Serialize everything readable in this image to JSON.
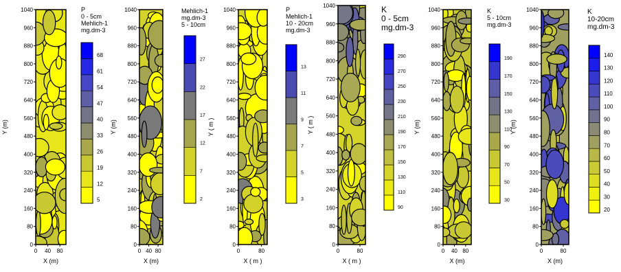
{
  "chart_data": [
    {
      "type": "heatmap",
      "title_lines": [
        "P",
        "0 - 5cm",
        "Mehlich-1",
        "mg.dm-3"
      ],
      "xlabel": "X (m)",
      "ylabel": "Y (m)",
      "xticks": [
        "0",
        "40",
        "80"
      ],
      "yticks": [
        "0",
        "80",
        "160",
        "240",
        "320",
        "400",
        "480",
        "560",
        "640",
        "720",
        "800",
        "880",
        "960",
        "1040"
      ],
      "xlim": [
        0,
        100
      ],
      "ylim": [
        0,
        1040
      ],
      "legend_levels": [
        "5",
        "12",
        "19",
        "26",
        "33",
        "40",
        "47",
        "54",
        "61",
        "68"
      ],
      "colors": [
        "#ffff00",
        "#e6e61a",
        "#c8c832",
        "#a9a94b",
        "#8c8c6e",
        "#747488",
        "#5e5ea6",
        "#4646c6",
        "#2727e6",
        "#0000ff"
      ],
      "dominant_level_index": 1
    },
    {
      "type": "heatmap",
      "title_lines": [
        "Mehlich-1",
        "mg.dm-3",
        "5 - 10cm"
      ],
      "xlabel": "X (m)",
      "ylabel": "Y (m)",
      "xticks": [
        "0",
        "40",
        "80"
      ],
      "yticks": [
        "0",
        "80",
        "160",
        "240",
        "320",
        "400",
        "480",
        "560",
        "640",
        "720",
        "800",
        "880",
        "960",
        "1040"
      ],
      "xlim": [
        0,
        100
      ],
      "ylim": [
        0,
        1040
      ],
      "legend_levels": [
        "2",
        "7",
        "12",
        "17",
        "22",
        "27"
      ],
      "colors": [
        "#ffff00",
        "#d2d22a",
        "#a5a550",
        "#7a7a7a",
        "#4a4ab0",
        "#0000ff"
      ],
      "dominant_level_index": 1
    },
    {
      "type": "heatmap",
      "title_lines": [
        "P",
        "Mehlich-1",
        "10 - 20cm",
        "mg.dm-3"
      ],
      "xlabel": "X ( m )",
      "ylabel": "Y ( m )",
      "xticks": [
        "0",
        "80"
      ],
      "yticks": [
        "0",
        "80",
        "160",
        "240",
        "320",
        "400",
        "480",
        "560",
        "640",
        "720",
        "800",
        "880",
        "960",
        "1040"
      ],
      "xlim": [
        0,
        100
      ],
      "ylim": [
        0,
        1040
      ],
      "legend_levels": [
        "3",
        "5",
        "7",
        "9",
        "11",
        "13"
      ],
      "colors": [
        "#ffff00",
        "#d2d22a",
        "#a5a550",
        "#7a7a7a",
        "#4a4ab0",
        "#0000ff"
      ],
      "dominant_level_index": 1
    },
    {
      "type": "heatmap",
      "title_lines": [
        "K",
        "0 - 5cm",
        "mg.dm-3"
      ],
      "xlabel": "X ( m )",
      "ylabel": "Y ( m )",
      "xticks": [
        "0",
        "80"
      ],
      "yticks": [
        "0",
        "80",
        "160",
        "240",
        "320",
        "400",
        "480",
        "560",
        "640",
        "720",
        "800",
        "880",
        "960",
        "1040"
      ],
      "xlim": [
        0,
        100
      ],
      "ylim": [
        0,
        1040
      ],
      "legend_levels": [
        "90",
        "110",
        "130",
        "150",
        "170",
        "190",
        "210",
        "230",
        "250",
        "270",
        "290"
      ],
      "colors": [
        "#ffff00",
        "#eaea15",
        "#d4d42a",
        "#bebe40",
        "#a8a855",
        "#8c8c70",
        "#767688",
        "#6060a0",
        "#4646c0",
        "#2a2ae0",
        "#0000ff"
      ],
      "dominant_level_index": 2
    },
    {
      "type": "heatmap",
      "title_lines": [
        "K",
        "5 - 10cm",
        "mg.dm-3"
      ],
      "xlabel": "X (m)",
      "ylabel": "Y (m)",
      "xticks": [
        "0",
        "40",
        "80"
      ],
      "yticks": [
        "0",
        "80",
        "160",
        "240",
        "320",
        "400",
        "480",
        "560",
        "640",
        "720",
        "800",
        "880",
        "960",
        "1040"
      ],
      "xlim": [
        0,
        100
      ],
      "ylim": [
        0,
        1040
      ],
      "legend_levels": [
        "30",
        "50",
        "70",
        "90",
        "110",
        "130",
        "150",
        "170",
        "190"
      ],
      "colors": [
        "#ffff00",
        "#e6e61a",
        "#c8c832",
        "#a9a94b",
        "#8c8c6e",
        "#747488",
        "#5e5ea6",
        "#3535d0",
        "#0000ff"
      ],
      "dominant_level_index": 2
    },
    {
      "type": "heatmap",
      "title_lines": [
        "K",
        "10-20cm",
        "mg.dm-3"
      ],
      "xlabel": "X (m)",
      "ylabel": "Y (m)",
      "xticks": [
        "0",
        "80"
      ],
      "yticks": [
        "0",
        "80",
        "160",
        "240",
        "320",
        "400",
        "480",
        "560",
        "640",
        "720",
        "800",
        "880",
        "960",
        "1040"
      ],
      "xlim": [
        0,
        100
      ],
      "ylim": [
        0,
        1040
      ],
      "legend_levels": [
        "20",
        "30",
        "40",
        "50",
        "60",
        "70",
        "80",
        "90",
        "100",
        "110",
        "120",
        "130",
        "140"
      ],
      "colors": [
        "#ffff00",
        "#efef10",
        "#dddd22",
        "#caca35",
        "#b8b848",
        "#a0a060",
        "#8a8a75",
        "#727290",
        "#6060a5",
        "#4b4bbc",
        "#3535d0",
        "#1c1ce8",
        "#0000ff"
      ],
      "dominant_level_index": 5
    }
  ]
}
